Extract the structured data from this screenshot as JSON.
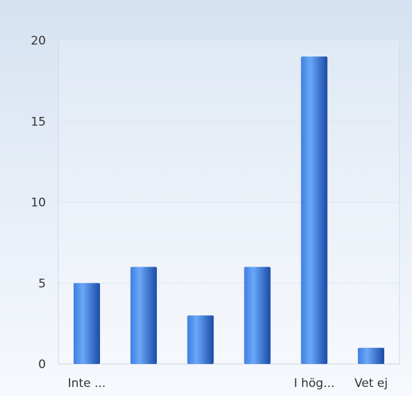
{
  "chart_data": {
    "type": "bar",
    "categories": [
      "Inte ...",
      "",
      "",
      "",
      "I hög...",
      "Vet ej"
    ],
    "values": [
      5,
      6,
      3,
      6,
      19,
      1
    ],
    "ylim": [
      0,
      20
    ],
    "yticks": [
      0,
      5,
      10,
      15,
      20
    ],
    "grid": true,
    "colors": {
      "bar_light": "#5b9cf4",
      "bar_dark": "#1c4fb0",
      "grid": "#dde6f1",
      "axis": "#c8d3e0"
    }
  }
}
